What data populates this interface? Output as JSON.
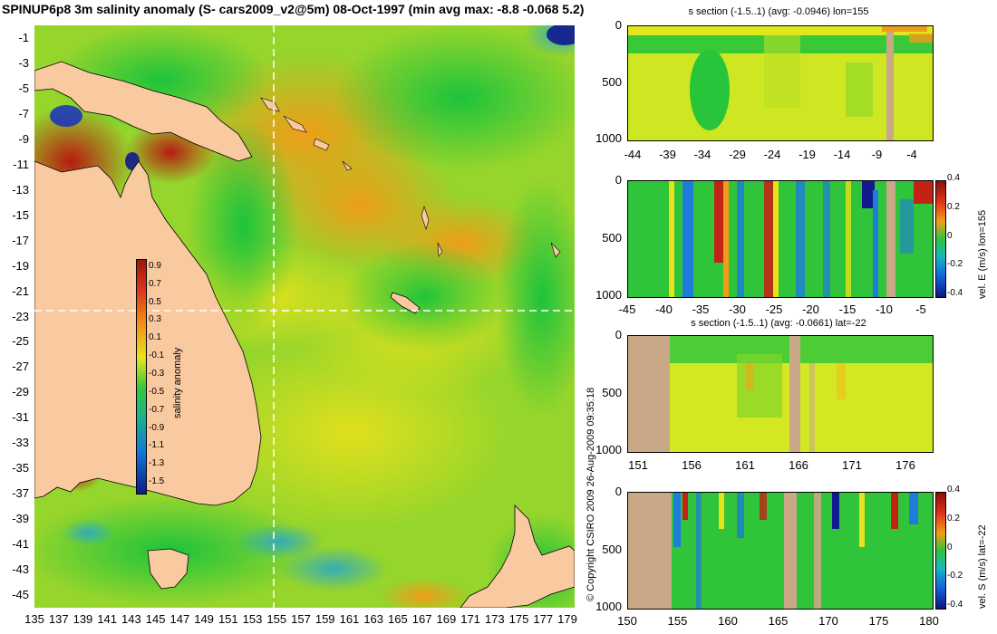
{
  "title": "SPINUP6p8 3m salinity anomaly (S- cars2009_v2@5m) 08-Oct-1997 (min avg max: -8.8 -0.068 5.2)",
  "map": {
    "lat_ticks": [
      "-1",
      "-3",
      "-5",
      "-7",
      "-9",
      "-11",
      "-13",
      "-15",
      "-17",
      "-19",
      "-21",
      "-23",
      "-25",
      "-27",
      "-29",
      "-31",
      "-33",
      "-35",
      "-37",
      "-39",
      "-41",
      "-43",
      "-45"
    ],
    "lon_ticks": [
      "135",
      "137",
      "139",
      "141",
      "143",
      "145",
      "147",
      "149",
      "151",
      "153",
      "155",
      "157",
      "159",
      "161",
      "163",
      "165",
      "167",
      "169",
      "171",
      "173",
      "175",
      "177",
      "179"
    ],
    "colorbar": {
      "label": "salinity anomaly",
      "ticks": [
        "0.9",
        "0.7",
        "0.5",
        "0.3",
        "0.1",
        "-0.1",
        "-0.3",
        "-0.5",
        "-0.7",
        "-0.9",
        "-1.1",
        "-1.3",
        "-1.5"
      ]
    }
  },
  "copyright": "© Copyright CSIRO 2009   26-Aug-2009 09:35:18",
  "panels": [
    {
      "title": "s section (-1.5..1) (avg: -0.0946) lon=155",
      "y_ticks": [
        "0",
        "500",
        "1000"
      ],
      "x_ticks": [
        "-44",
        "-39",
        "-34",
        "-29",
        "-24",
        "-19",
        "-14",
        "-9",
        "-4"
      ],
      "side_label": ""
    },
    {
      "title": "",
      "y_ticks": [
        "0",
        "500",
        "1000"
      ],
      "x_ticks": [
        "-45",
        "-40",
        "-35",
        "-30",
        "-25",
        "-20",
        "-15",
        "-10",
        "-5"
      ],
      "side_label": "vel. E (m/s) lon=155",
      "colorbar_ticks": [
        "0.4",
        "0.2",
        "0",
        "-0.2",
        "-0.4"
      ]
    },
    {
      "title": "s section (-1.5..1) (avg: -0.0661) lat=-22",
      "y_ticks": [
        "0",
        "500",
        "1000"
      ],
      "x_ticks": [
        "151",
        "156",
        "161",
        "166",
        "171",
        "176"
      ],
      "side_label": ""
    },
    {
      "title": "",
      "y_ticks": [
        "0",
        "500",
        "1000"
      ],
      "x_ticks": [
        "150",
        "155",
        "160",
        "165",
        "170",
        "175",
        "180"
      ],
      "side_label": "vel. S (m/s) lat=-22",
      "colorbar_ticks": [
        "0.4",
        "0.2",
        "0",
        "-0.2",
        "-0.4"
      ]
    }
  ],
  "colors": {
    "land": "#f9c9a0",
    "section_land": "#c8a886",
    "ocean_base": "#8fd32a",
    "green": "#1ec93a",
    "yellow": "#e6ea1c",
    "orange": "#f39a18",
    "red": "#c22314",
    "blue": "#1f7bdc",
    "navy": "#101a8c"
  }
}
